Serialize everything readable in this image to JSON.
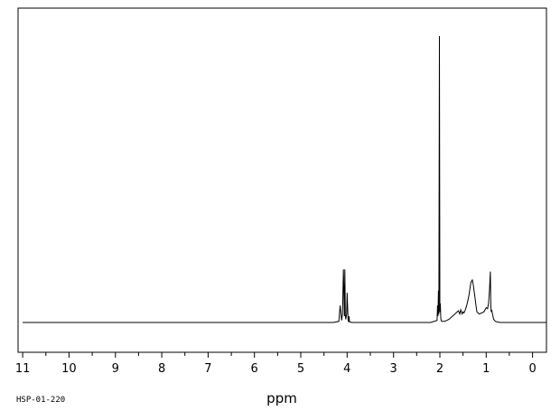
{
  "chart_data": {
    "type": "line",
    "title": "",
    "xlabel": "ppm",
    "ylabel": "",
    "x_reversed": true,
    "xlim": [
      11.1,
      -0.3
    ],
    "ylim": [
      -1.5,
      14.0
    ],
    "grid": false,
    "legend": "none",
    "x_ticks": [
      "11",
      "10",
      "9",
      "8",
      "7",
      "6",
      "5",
      "4",
      "3",
      "2",
      "1",
      "0"
    ],
    "x_tick_values": [
      11,
      10,
      9,
      8,
      7,
      6,
      5,
      4,
      3,
      2,
      1,
      0
    ],
    "series": [
      {
        "values_note_free": true,
        "x": [
          11.0,
          4.3,
          4.18,
          4.15,
          4.12,
          4.1,
          4.08,
          4.06,
          4.05,
          4.04,
          4.03,
          4.01,
          4.0,
          3.98,
          3.97,
          3.96,
          3.95,
          3.93,
          3.9,
          2.2,
          2.06,
          2.05,
          2.04,
          2.03,
          2.02,
          2.01,
          2.0,
          1.99,
          1.98,
          1.97,
          1.96,
          1.9,
          1.8,
          1.75,
          1.7,
          1.65,
          1.6,
          1.57,
          1.55,
          1.52,
          1.5,
          1.48,
          1.45,
          1.42,
          1.4,
          1.37,
          1.35,
          1.33,
          1.3,
          1.28,
          1.25,
          1.22,
          1.2,
          1.15,
          1.1,
          1.05,
          1.0,
          0.97,
          0.95,
          0.93,
          0.91,
          0.9,
          0.89,
          0.88,
          0.87,
          0.86,
          0.85,
          0.84,
          0.82,
          0.8,
          0.75,
          0.7,
          -0.3
        ],
        "y": [
          0.0,
          0.0,
          0.05,
          0.8,
          0.1,
          0.4,
          2.5,
          0.3,
          2.5,
          0.35,
          0.15,
          0.4,
          1.4,
          0.1,
          0.05,
          0.3,
          0.05,
          0.02,
          0.0,
          0.0,
          0.1,
          0.8,
          0.3,
          1.5,
          0.4,
          13.5,
          0.5,
          0.9,
          0.2,
          0.1,
          0.05,
          0.05,
          0.15,
          0.25,
          0.35,
          0.45,
          0.55,
          0.4,
          0.6,
          0.4,
          0.5,
          0.45,
          0.6,
          0.8,
          1.0,
          1.3,
          1.6,
          1.9,
          2.0,
          1.8,
          1.3,
          0.8,
          0.5,
          0.4,
          0.45,
          0.5,
          0.7,
          0.65,
          0.9,
          1.5,
          2.4,
          0.8,
          0.5,
          0.6,
          0.45,
          0.35,
          0.25,
          0.15,
          0.1,
          0.05,
          0.02,
          0.0,
          0.0
        ]
      }
    ],
    "footer_code": "HSP-01-220"
  }
}
